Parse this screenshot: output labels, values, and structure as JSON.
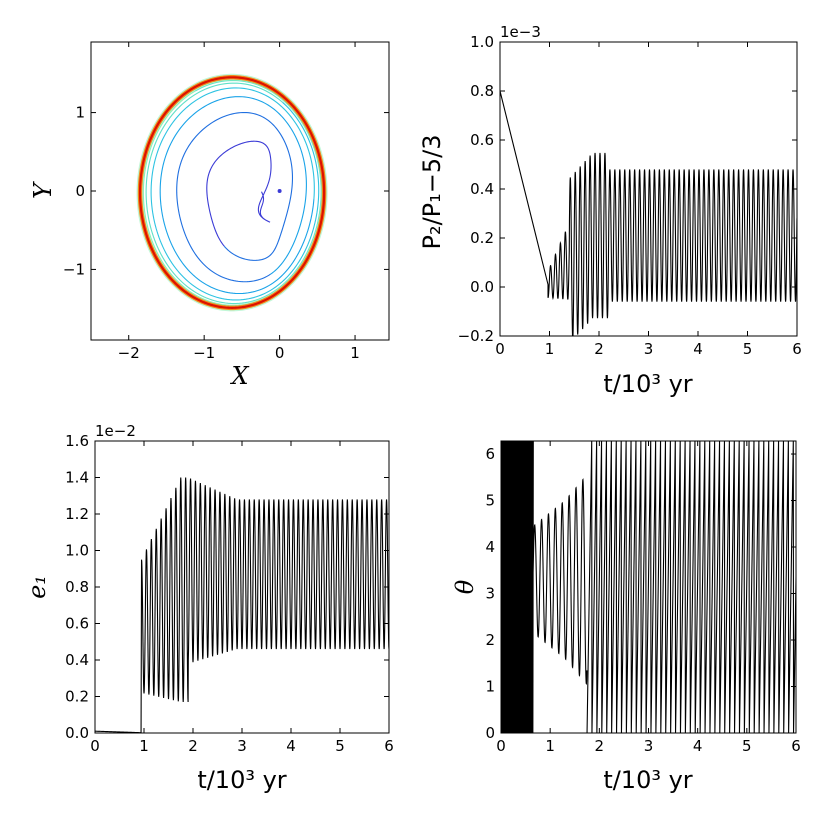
{
  "chart_data": [
    {
      "id": "orbit",
      "type": "line",
      "xlabel": "X",
      "ylabel": "Y",
      "xlim": [
        -2.5,
        1.45
      ],
      "ylim": [
        -1.9,
        1.9
      ],
      "xticks": [
        -2,
        -1,
        0,
        1
      ],
      "xtick_labels": [
        "−2",
        "−1",
        "0",
        "1"
      ],
      "yticks": [
        -1,
        0,
        1
      ],
      "ytick_labels": [
        "−1",
        "0",
        "1"
      ],
      "spiral": {
        "start": [
          0.0,
          0.0
        ],
        "center": [
          -0.6,
          0.0
        ],
        "turns": 7
      },
      "final_orbit": {
        "center": [
          -0.63,
          -0.02
        ],
        "rx": 1.22,
        "ry": 1.47,
        "color": "#dd1100",
        "glow_color": "#f08a1c"
      },
      "colors": [
        "#3b3bd6",
        "#1f6fe0",
        "#1aa3e8",
        "#2ec3e2",
        "#5fe0c8",
        "#8ff0b8"
      ]
    },
    {
      "id": "period_ratio",
      "type": "line",
      "xlabel": "t/10³ yr",
      "ylabel": "P₂/P₁−5/3",
      "offset_text": "1e−3",
      "xlim": [
        0,
        6
      ],
      "ylim": [
        -0.2,
        1.0
      ],
      "xticks": [
        0,
        1,
        2,
        3,
        4,
        5,
        6
      ],
      "xtick_labels": [
        "0",
        "1",
        "2",
        "3",
        "4",
        "5",
        "6"
      ],
      "yticks": [
        -0.2,
        0.0,
        0.2,
        0.4,
        0.6,
        0.8,
        1.0
      ],
      "ytick_labels": [
        "−0.2",
        "0.0",
        "0.2",
        "0.4",
        "0.6",
        "0.8",
        "1.0"
      ],
      "initial": 0.8,
      "drift_end": [
        0.97,
        0.01
      ],
      "early_peak": [
        1.6,
        0.5
      ],
      "early_trough": [
        1.7,
        -0.17
      ],
      "steady_max": 0.48,
      "steady_min": -0.06,
      "period_kyr": 0.1
    },
    {
      "id": "eccentricity",
      "type": "line",
      "xlabel": "t/10³ yr",
      "ylabel": "e₁",
      "offset_text": "1e−2",
      "xlim": [
        0,
        6
      ],
      "ylim": [
        0.0,
        1.6
      ],
      "xticks": [
        0,
        1,
        2,
        3,
        4,
        5,
        6
      ],
      "xtick_labels": [
        "0",
        "1",
        "2",
        "3",
        "4",
        "5",
        "6"
      ],
      "yticks": [
        0.0,
        0.2,
        0.4,
        0.6,
        0.8,
        1.0,
        1.2,
        1.4,
        1.6
      ],
      "ytick_labels": [
        "0.0",
        "0.2",
        "0.4",
        "0.6",
        "0.8",
        "1.0",
        "1.2",
        "1.4",
        "1.6"
      ],
      "initial": 0.01,
      "jump_time": 0.95,
      "early_peak": [
        1.73,
        1.41
      ],
      "early_trough": [
        1.68,
        0.15
      ],
      "steady_max": 1.28,
      "steady_min": 0.46,
      "period_kyr": 0.1
    },
    {
      "id": "resonant_angle",
      "type": "line",
      "xlabel": "t/10³ yr",
      "ylabel": "θ",
      "xlim": [
        0,
        6
      ],
      "ylim": [
        0,
        6.28
      ],
      "xticks": [
        0,
        1,
        2,
        3,
        4,
        5,
        6
      ],
      "xtick_labels": [
        "0",
        "1",
        "2",
        "3",
        "4",
        "5",
        "6"
      ],
      "yticks": [
        0,
        1,
        2,
        3,
        4,
        5,
        6
      ],
      "ytick_labels": [
        "0",
        "1",
        "2",
        "3",
        "4",
        "5",
        "6"
      ],
      "wrap_interval": [
        0.0,
        0.65
      ],
      "libration_center": 3.3,
      "libration_amp_at_1kyr": 1.3,
      "circulation_start": 1.75,
      "period_kyr": 0.1
    }
  ]
}
